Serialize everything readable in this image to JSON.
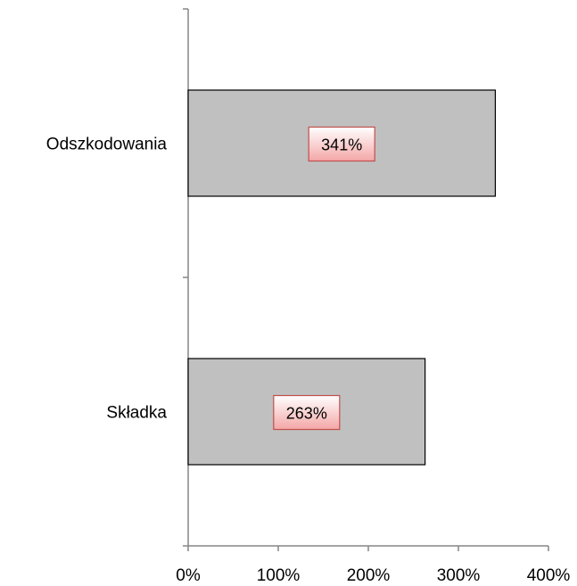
{
  "chart_data": {
    "type": "bar",
    "orientation": "horizontal",
    "title": "",
    "xlabel": "",
    "ylabel": "",
    "categories": [
      "Odszkodowania",
      "Składka"
    ],
    "values": [
      341,
      263
    ],
    "data_labels": [
      "341%",
      "263%"
    ],
    "xlim": [
      0,
      400
    ],
    "x_ticks": [
      "0%",
      "100%",
      "200%",
      "300%",
      "400%"
    ],
    "grid": false,
    "legend": false,
    "colors": {
      "bar_fill": "#c0c0c0",
      "bar_stroke": "#000000",
      "axis": "#868686",
      "label_fill_top": "#ffffff",
      "label_fill_bottom": "#f4a6a6",
      "label_stroke": "#c0504d"
    }
  }
}
